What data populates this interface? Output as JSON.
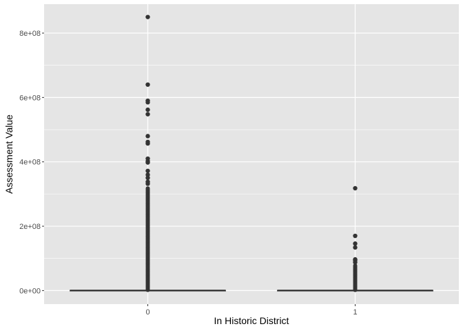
{
  "chart_data": {
    "type": "boxplot",
    "xlabel": "In Historic District",
    "ylabel": "Assessment Value",
    "categories": [
      "0",
      "1"
    ],
    "y_ticks": [
      0,
      200000000,
      400000000,
      600000000,
      800000000
    ],
    "y_tick_labels": [
      "0e+00",
      "2e+08",
      "4e+08",
      "6e+08",
      "8e+08"
    ],
    "ylim": [
      -42000000,
      890000000
    ],
    "grid": true,
    "colors": {
      "panel_bg": "#e5e5e5",
      "grid": "#ffffff",
      "box": "#333333",
      "point": "#333333"
    },
    "boxes": [
      {
        "category": "0",
        "q1": 0,
        "median": 300000,
        "q3": 800000,
        "outliers_dense_range": [
          2000000,
          320000000
        ],
        "outliers": [
          850000000,
          640000000,
          590000000,
          585000000,
          562000000,
          548000000,
          480000000,
          462000000,
          457000000,
          410000000,
          402000000,
          398000000,
          372000000,
          360000000,
          350000000,
          338000000,
          332000000
        ]
      },
      {
        "category": "1",
        "q1": 0,
        "median": 300000,
        "q3": 800000,
        "outliers_dense_range": [
          2000000,
          78000000
        ],
        "outliers": [
          318000000,
          170000000,
          146000000,
          134000000,
          97000000,
          94000000,
          88000000
        ]
      }
    ]
  }
}
